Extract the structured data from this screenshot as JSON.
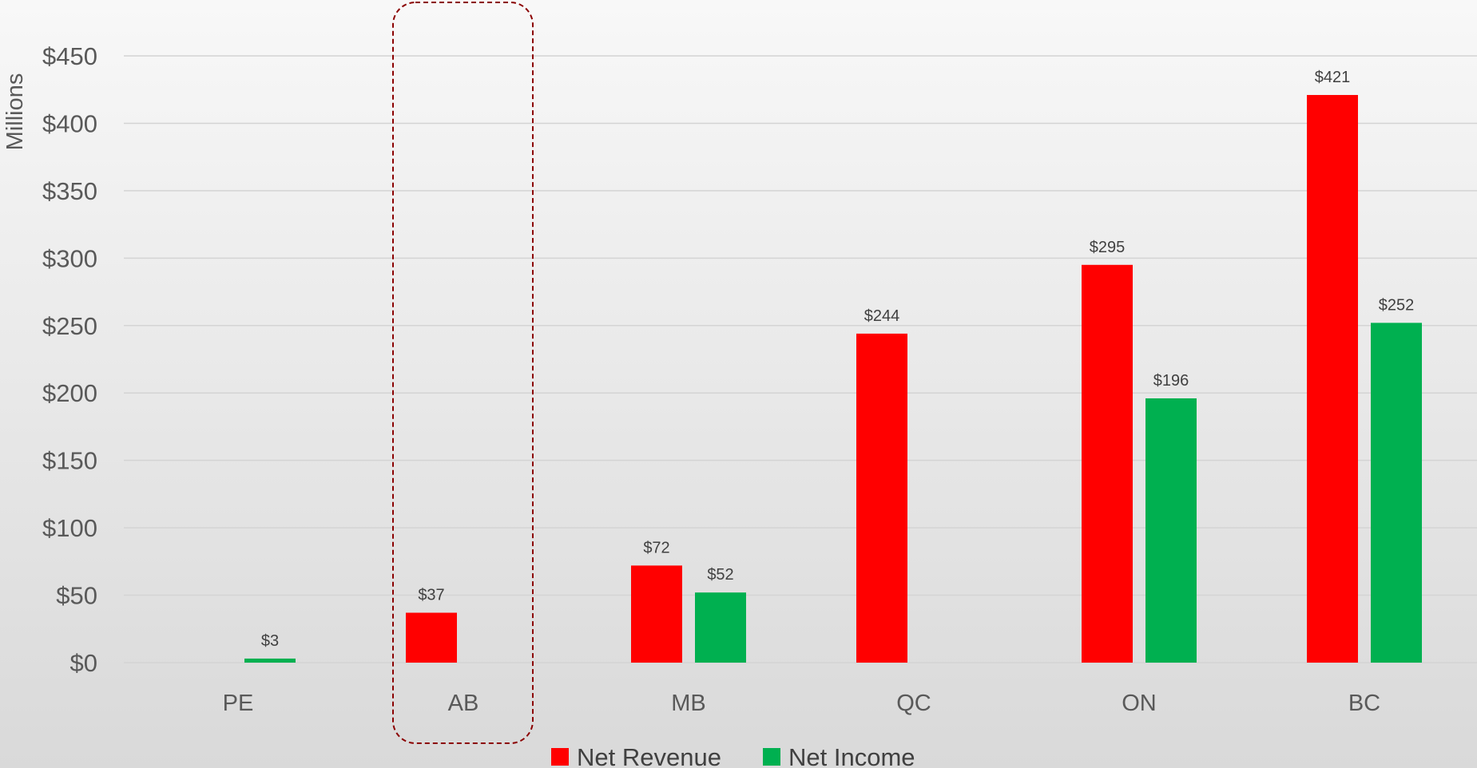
{
  "chart_data": {
    "type": "bar",
    "title": "",
    "xlabel": "",
    "ylabel": "Millions",
    "categories": [
      "PE",
      "AB",
      "MB",
      "QC",
      "ON",
      "BC"
    ],
    "series": [
      {
        "name": "Net Revenue",
        "color": "#ff0000",
        "values": [
          null,
          37,
          72,
          244,
          295,
          421
        ]
      },
      {
        "name": "Net Income",
        "color": "#00b050",
        "values": [
          3,
          null,
          52,
          null,
          196,
          252
        ]
      }
    ],
    "data_labels": [
      [
        "",
        "$37",
        "$72",
        "$244",
        "$295",
        "$421"
      ],
      [
        "$3",
        "",
        "$52",
        "",
        "$196",
        "$252"
      ]
    ],
    "ylim": [
      0,
      450
    ],
    "yticks": [
      0,
      50,
      100,
      150,
      200,
      250,
      300,
      350,
      400,
      450
    ],
    "ytick_labels": [
      "$0",
      "$50",
      "$100",
      "$150",
      "$200",
      "$250",
      "$300",
      "$350",
      "$400",
      "$450"
    ],
    "grid": true,
    "legend_position": "bottom",
    "highlight": {
      "category": "AB",
      "style": "dashed-rounded-box",
      "color": "#8b0000"
    }
  }
}
